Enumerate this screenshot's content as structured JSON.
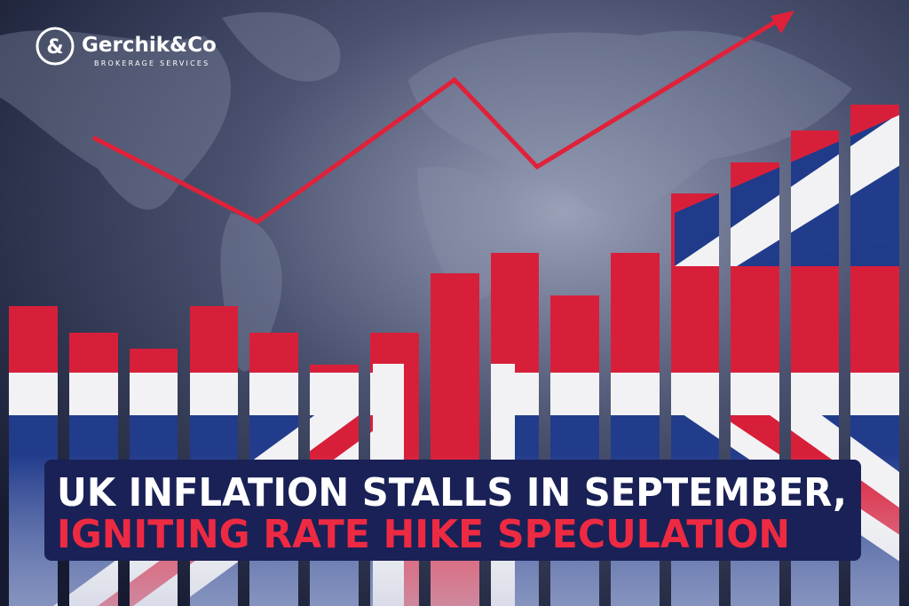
{
  "logo": {
    "name": "Gerchik&Co",
    "tagline": "BROKERAGE SERVICES"
  },
  "headline": {
    "line1": "UK INFLATION STALLS IN SEPTEMBER,",
    "line2": "IGNITING RATE HIKE SPECULATION"
  }
}
